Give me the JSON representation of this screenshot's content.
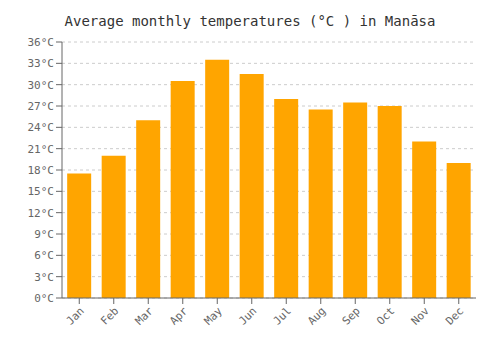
{
  "chart_data": {
    "type": "bar",
    "title": "Average monthly temperatures (°C ) in Manāsa",
    "categories": [
      "Jan",
      "Feb",
      "Mar",
      "Apr",
      "May",
      "Jun",
      "Jul",
      "Aug",
      "Sep",
      "Oct",
      "Nov",
      "Dec"
    ],
    "values": [
      17.5,
      20.0,
      25.0,
      30.5,
      33.5,
      31.5,
      28.0,
      26.5,
      27.5,
      27.0,
      22.0,
      19.0
    ],
    "color": "#FFA500",
    "ylim": [
      0,
      36
    ],
    "yticks": [
      {
        "value": 0,
        "label": "0°C"
      },
      {
        "value": 3,
        "label": "3°C"
      },
      {
        "value": 6,
        "label": "6°C"
      },
      {
        "value": 9,
        "label": "9°C"
      },
      {
        "value": 12,
        "label": "12°C"
      },
      {
        "value": 15,
        "label": "15°C"
      },
      {
        "value": 18,
        "label": "18°C"
      },
      {
        "value": 21,
        "label": "21°C"
      },
      {
        "value": 24,
        "label": "24°C"
      },
      {
        "value": 27,
        "label": "27°C"
      },
      {
        "value": 30,
        "label": "30°C"
      },
      {
        "value": 33,
        "label": "33°C"
      },
      {
        "value": 36,
        "label": "36°C"
      }
    ],
    "grid": true
  }
}
